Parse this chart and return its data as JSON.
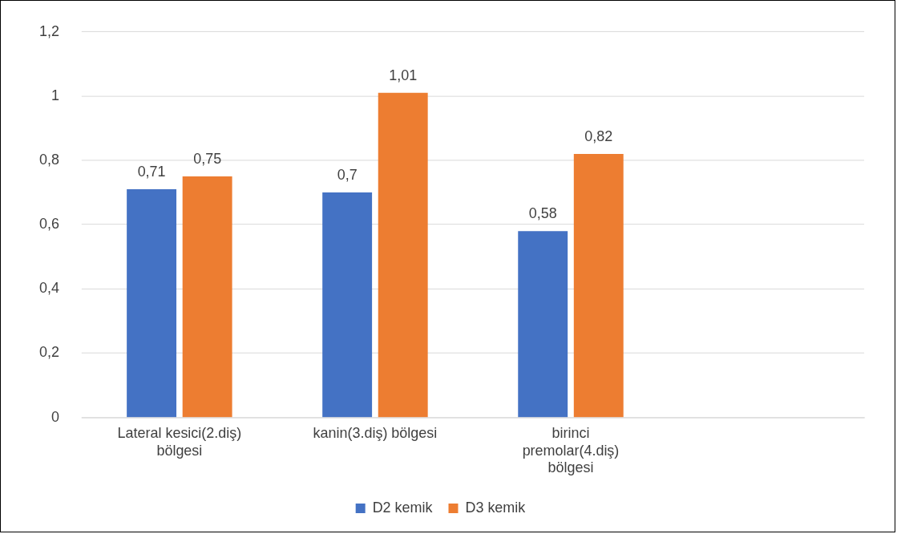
{
  "chart_data": {
    "type": "bar",
    "categories": [
      "Lateral kesici(2.diş) bölgesi",
      "kanin(3.diş) bölgesi",
      "birinci premolar(4.diş) bölgesi",
      null
    ],
    "series": [
      {
        "name": "D2 kemik",
        "color": "#4472c4",
        "values": [
          0.71,
          0.7,
          0.58,
          null
        ],
        "value_labels": [
          "0,71",
          "0,7",
          "0,58",
          null
        ]
      },
      {
        "name": "D3 kemik",
        "color": "#ed7d31",
        "values": [
          0.75,
          1.01,
          0.82,
          null
        ],
        "value_labels": [
          "0,75",
          "1,01",
          "0,82",
          null
        ]
      }
    ],
    "ylim": [
      0,
      1.2
    ],
    "yticks": [
      {
        "value": 0,
        "label": "0"
      },
      {
        "value": 0.2,
        "label": "0,2"
      },
      {
        "value": 0.4,
        "label": "0,4"
      },
      {
        "value": 0.6,
        "label": "0,6"
      },
      {
        "value": 0.8,
        "label": "0,8"
      },
      {
        "value": 1,
        "label": "1"
      },
      {
        "value": 1.2,
        "label": "1,2"
      }
    ],
    "grid": "y",
    "legend": "bottom"
  }
}
